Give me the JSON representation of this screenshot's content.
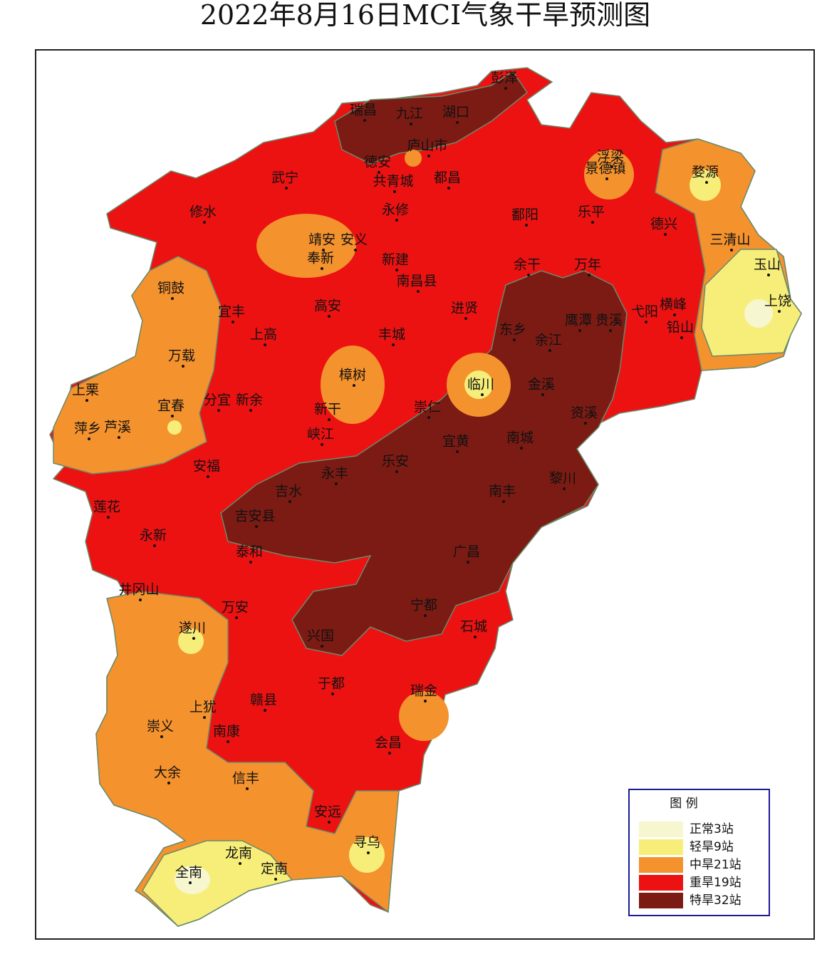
{
  "title": "2022年8月16日MCI气象干旱预测图",
  "legend": {
    "title": "图 例",
    "items": [
      {
        "label": "正常3站",
        "color": "#f6f6cf"
      },
      {
        "label": "轻旱9站",
        "color": "#f7ee7a"
      },
      {
        "label": "中旱21站",
        "color": "#f4922e"
      },
      {
        "label": "重旱19站",
        "color": "#ec1212"
      },
      {
        "label": "特旱32站",
        "color": "#7b1b14"
      }
    ]
  },
  "cities": [
    "彭泽",
    "瑞昌",
    "九江",
    "湖口",
    "庐山市",
    "德安",
    "共青城",
    "都昌",
    "武宁",
    "修水",
    "永修",
    "鄱阳",
    "乐平",
    "浮梁",
    "景德镇",
    "婺源",
    "德兴",
    "三清山",
    "玉山",
    "上饶",
    "靖安",
    "安义",
    "奉新",
    "新建",
    "南昌县",
    "余干",
    "万年",
    "铜鼓",
    "宜丰",
    "高安",
    "进贤",
    "上高",
    "丰城",
    "东乡",
    "余江",
    "鹰潭",
    "贵溪",
    "弋阳",
    "横峰",
    "铅山",
    "万载",
    "樟树",
    "临川",
    "金溪",
    "上栗",
    "宜春",
    "分宜",
    "新余",
    "新干",
    "崇仁",
    "资溪",
    "萍乡",
    "芦溪",
    "峡江",
    "乐安",
    "宜黄",
    "南城",
    "安福",
    "吉水",
    "永丰",
    "黎川",
    "南丰",
    "莲花",
    "吉安县",
    "永新",
    "泰和",
    "广昌",
    "井冈山",
    "宁都",
    "万安",
    "石城",
    "遂川",
    "兴国",
    "于都",
    "瑞金",
    "赣县",
    "上犹",
    "崇义",
    "南康",
    "会昌",
    "大余",
    "信丰",
    "安远",
    "寻乌",
    "龙南",
    "全南",
    "定南"
  ]
}
